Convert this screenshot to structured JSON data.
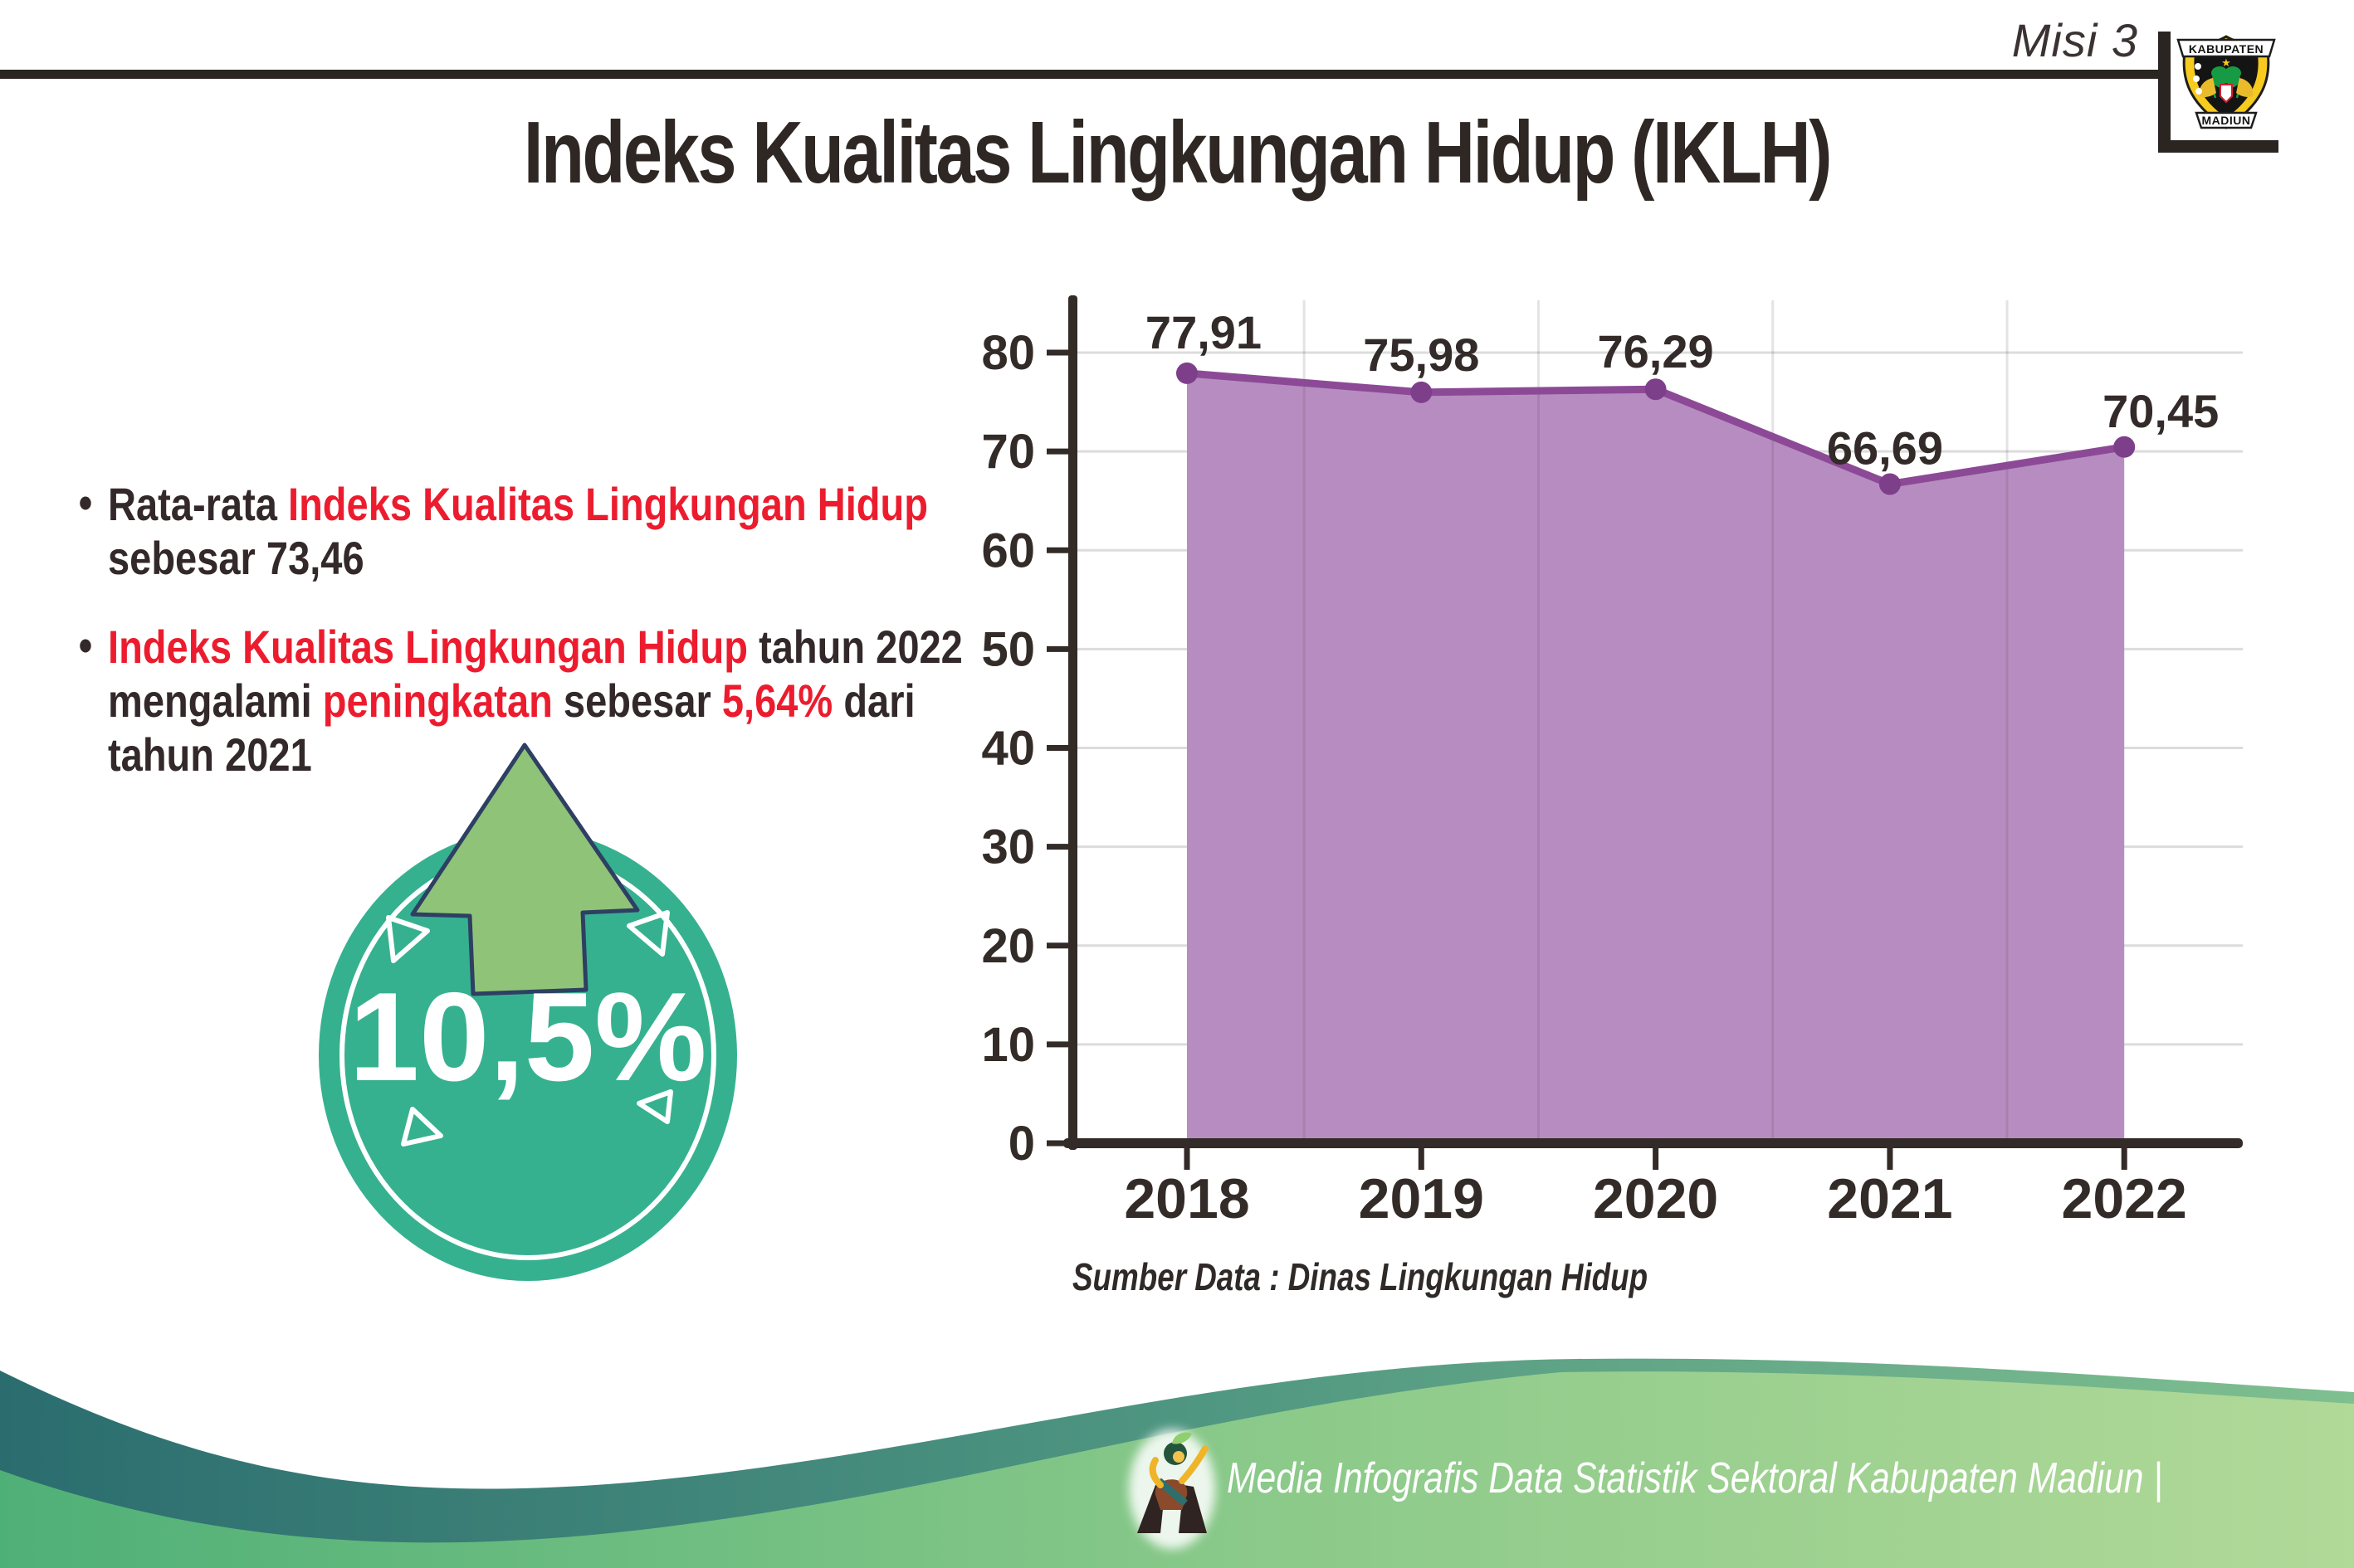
{
  "header": {
    "misi": "Misi 3",
    "title": "Indeks Kualitas Lingkungan Hidup (IKLH)",
    "logo": {
      "top": "KABUPATEN",
      "bottom": "MADIUN"
    }
  },
  "bullets": {
    "items": [
      {
        "lines": [
          {
            "segments": [
              {
                "text": "Rata-rata ",
                "color": "dark"
              },
              {
                "text": "Indeks Kualitas Lingkungan Hidup",
                "color": "red"
              }
            ]
          },
          {
            "segments": [
              {
                "text": "sebesar 73,46",
                "color": "dark"
              }
            ]
          }
        ]
      },
      {
        "lines": [
          {
            "segments": [
              {
                "text": "Indeks Kualitas Lingkungan Hidup",
                "color": "red"
              },
              {
                "text": " tahun 2022",
                "color": "dark"
              }
            ]
          },
          {
            "segments": [
              {
                "text": "mengalami ",
                "color": "dark"
              },
              {
                "text": "peningkatan",
                "color": "red"
              },
              {
                "text": " sebesar ",
                "color": "dark"
              },
              {
                "text": "5,64%",
                "color": "red"
              },
              {
                "text": " dari",
                "color": "dark"
              }
            ]
          },
          {
            "segments": [
              {
                "text": "tahun 2021",
                "color": "dark"
              }
            ]
          }
        ]
      }
    ]
  },
  "increase_badge": {
    "value": "10,5%"
  },
  "chart_data": {
    "type": "area",
    "categories": [
      "2018",
      "2019",
      "2020",
      "2021",
      "2022"
    ],
    "values": [
      77.91,
      75.98,
      76.29,
      66.69,
      70.45
    ],
    "point_labels": [
      "77,91",
      "75,98",
      "76,29",
      "66,69",
      "70,45"
    ],
    "ylim": [
      0,
      80
    ],
    "yticks": [
      0,
      10,
      20,
      30,
      40,
      50,
      60,
      70,
      80
    ],
    "grid": true,
    "legend_position": "none",
    "source": "Sumber Data : Dinas Lingkungan Hidup"
  },
  "footer": {
    "credit": "Media Infografis Data Statistik Sektoral Kabupaten Madiun |"
  },
  "colors": {
    "text_dark": "#33292a",
    "accent_red": "#ec1c2e",
    "area_fill": "#b78dc1",
    "line": "#8c4a96",
    "marker": "#7d3f8a",
    "axis": "#332b28",
    "gridline": "#dcdcdc",
    "badge_teal": "#36b190",
    "arrow_green": "#8fc478",
    "arrow_outline": "#2e3f63",
    "footer_teal_dark": "#2b6d6f",
    "footer_green_light": "#b1d998"
  }
}
